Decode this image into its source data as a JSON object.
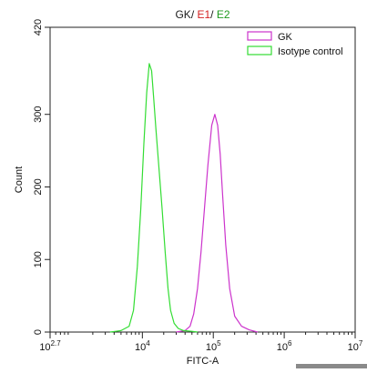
{
  "chart_data": {
    "type": "line",
    "title_parts": [
      {
        "text": "GK",
        "color": "#1a1a1a"
      },
      {
        "text": "/ ",
        "color": "#1a1a1a"
      },
      {
        "text": "E1",
        "color": "#d42020"
      },
      {
        "text": "/ ",
        "color": "#1a1a1a"
      },
      {
        "text": "E2",
        "color": "#1e9a1e"
      }
    ],
    "xlabel": "FITC-A",
    "ylabel": "Count",
    "x_scale": "log",
    "xlim": [
      500,
      10000000
    ],
    "ylim": [
      0,
      420
    ],
    "x_ticks": [
      {
        "value": 500,
        "base": "10",
        "exp": "2.7"
      },
      {
        "value": 10000,
        "base": "10",
        "exp": "4"
      },
      {
        "value": 100000,
        "base": "10",
        "exp": "5"
      },
      {
        "value": 1000000,
        "base": "10",
        "exp": "6"
      },
      {
        "value": 10000000,
        "base": "10",
        "exp": "7"
      }
    ],
    "y_ticks": [
      "0",
      "100",
      "200",
      "300",
      "420"
    ],
    "y_tick_values": [
      0,
      100,
      200,
      300,
      420
    ],
    "legend_position": "top-right",
    "grid": false,
    "series": [
      {
        "name": "GK",
        "color": "#cc33cc",
        "x": [
          30000,
          40000,
          47000,
          53000,
          60000,
          67000,
          75000,
          84000,
          95000,
          105000,
          115000,
          125000,
          135000,
          150000,
          170000,
          200000,
          250000,
          320000,
          420000
        ],
        "y": [
          0,
          2,
          8,
          25,
          60,
          110,
          170,
          230,
          285,
          300,
          285,
          245,
          190,
          120,
          60,
          22,
          8,
          3,
          0
        ]
      },
      {
        "name": "Isotype control",
        "color": "#33dd33",
        "x": [
          3500,
          5000,
          6500,
          7500,
          8500,
          9500,
          10500,
          11500,
          12500,
          13500,
          14500,
          15500,
          17000,
          19000,
          21000,
          23000,
          25000,
          28000,
          32000,
          38000,
          50000,
          60000
        ],
        "y": [
          0,
          2,
          8,
          30,
          90,
          170,
          260,
          330,
          370,
          360,
          320,
          280,
          230,
          170,
          110,
          60,
          30,
          12,
          5,
          2,
          1,
          0
        ]
      }
    ]
  }
}
